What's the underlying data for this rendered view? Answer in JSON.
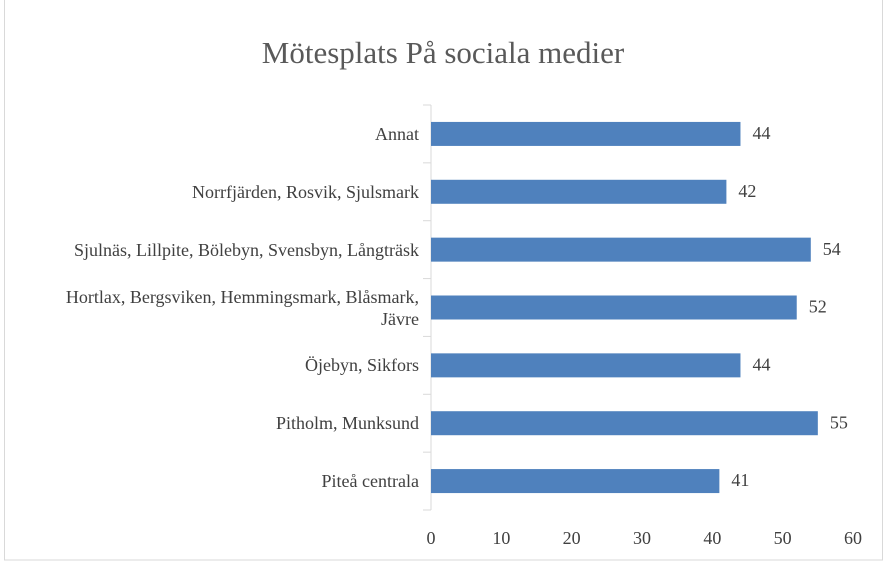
{
  "chart_data": {
    "type": "barh",
    "title": "Mötesplats På sociala medier",
    "categories": [
      "Annat",
      "Norrfjärden, Rosvik, Sjulsmark",
      "Sjulnäs, Lillpite, Bölebyn, Svensbyn, Långträsk",
      "Hortlax, Bergsviken, Hemmingsmark, Blåsmark, Jävre",
      "Öjebyn, Sikfors",
      "Pitholm, Munksund",
      "Piteå centrala"
    ],
    "values": [
      44,
      42,
      54,
      52,
      44,
      55,
      41
    ],
    "color": "#4f81bd",
    "xlim": [
      0,
      60
    ],
    "xticks": [
      0,
      10,
      20,
      30,
      40,
      50,
      60
    ],
    "grid": false
  }
}
